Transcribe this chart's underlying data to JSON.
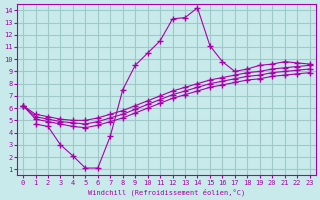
{
  "xlabel": "Windchill (Refroidissement éolien,°C)",
  "bg_color": "#c8eaea",
  "grid_color": "#a0c8c8",
  "line_color": "#aa00aa",
  "xlim": [
    0,
    23
  ],
  "ylim": [
    1,
    14
  ],
  "xticks": [
    0,
    1,
    2,
    3,
    4,
    5,
    6,
    7,
    8,
    9,
    10,
    11,
    12,
    13,
    14,
    15,
    16,
    17,
    18,
    19,
    20,
    21,
    22,
    23
  ],
  "yticks": [
    1,
    2,
    3,
    4,
    5,
    6,
    7,
    8,
    9,
    10,
    11,
    12,
    13,
    14
  ],
  "line1_x": [
    1,
    2,
    3,
    4,
    5,
    6,
    7,
    8,
    9,
    10,
    11,
    12,
    13,
    14,
    15,
    16,
    17,
    18,
    19,
    20,
    21,
    22,
    23
  ],
  "line1_y": [
    4.7,
    4.5,
    3.0,
    2.1,
    1.1,
    1.1,
    3.7,
    7.5,
    9.5,
    10.5,
    11.5,
    13.3,
    13.4,
    14.2,
    11.1,
    9.8,
    9.0,
    9.2,
    9.5,
    9.6,
    9.8,
    9.7,
    9.6
  ],
  "line2_x": [
    0,
    1,
    2,
    3,
    4,
    5,
    6,
    7,
    8,
    9,
    10,
    11,
    12,
    13,
    14,
    15,
    16,
    17,
    18,
    19,
    20,
    21,
    22,
    23
  ],
  "line2_y": [
    6.2,
    5.5,
    5.3,
    5.1,
    5.0,
    5.0,
    5.2,
    5.5,
    5.8,
    6.2,
    6.6,
    7.0,
    7.4,
    7.7,
    8.0,
    8.3,
    8.5,
    8.7,
    8.9,
    9.0,
    9.2,
    9.3,
    9.4,
    9.5
  ],
  "line3_x": [
    0,
    1,
    2,
    3,
    4,
    5,
    6,
    7,
    8,
    9,
    10,
    11,
    12,
    13,
    14,
    15,
    16,
    17,
    18,
    19,
    20,
    21,
    22,
    23
  ],
  "line3_y": [
    6.2,
    5.3,
    5.1,
    4.9,
    4.8,
    4.7,
    4.9,
    5.2,
    5.5,
    5.9,
    6.3,
    6.7,
    7.1,
    7.4,
    7.7,
    8.0,
    8.2,
    8.4,
    8.6,
    8.7,
    8.9,
    9.0,
    9.1,
    9.2
  ],
  "line4_x": [
    0,
    1,
    2,
    3,
    4,
    5,
    6,
    7,
    8,
    9,
    10,
    11,
    12,
    13,
    14,
    15,
    16,
    17,
    18,
    19,
    20,
    21,
    22,
    23
  ],
  "line4_y": [
    6.2,
    5.1,
    4.9,
    4.7,
    4.5,
    4.4,
    4.6,
    4.9,
    5.2,
    5.6,
    6.0,
    6.4,
    6.8,
    7.1,
    7.4,
    7.7,
    7.9,
    8.1,
    8.3,
    8.4,
    8.6,
    8.7,
    8.8,
    8.9
  ]
}
